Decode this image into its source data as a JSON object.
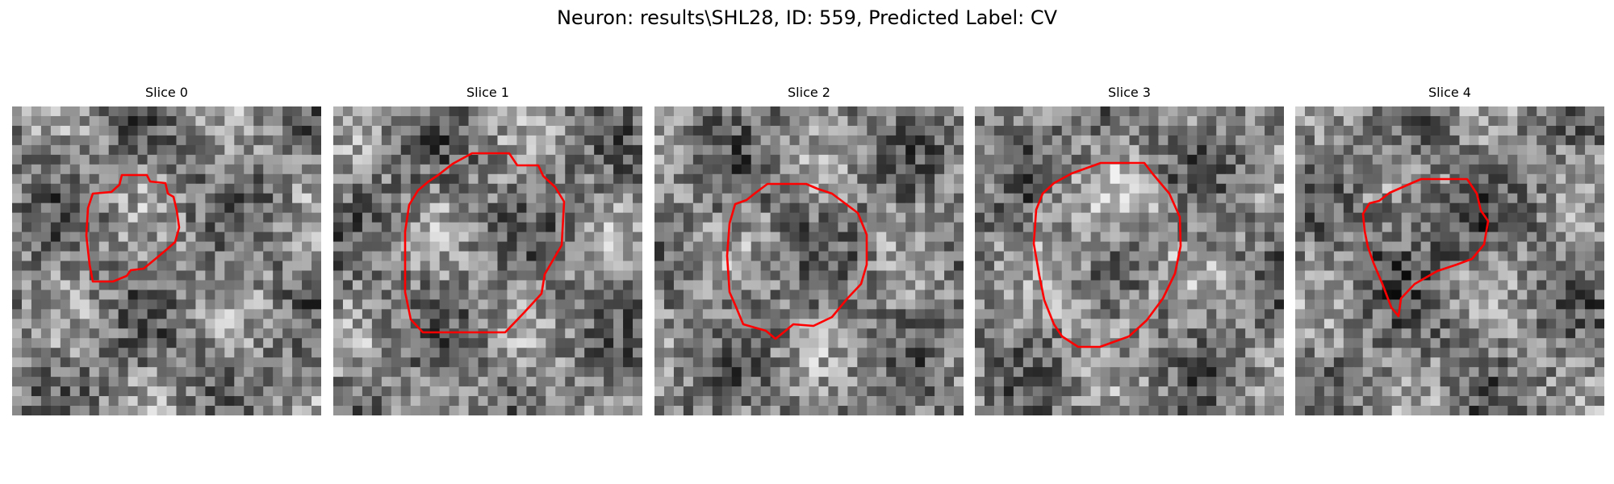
{
  "figure": {
    "title": "Neuron: results\\SHL28, ID: 559, Predicted Label: CV",
    "contour_color": "#ff0000",
    "colormap": "gray"
  },
  "slices": [
    {
      "title": "Slice 0"
    },
    {
      "title": "Slice 1"
    },
    {
      "title": "Slice 2"
    },
    {
      "title": "Slice 3"
    },
    {
      "title": "Slice 4"
    }
  ]
}
